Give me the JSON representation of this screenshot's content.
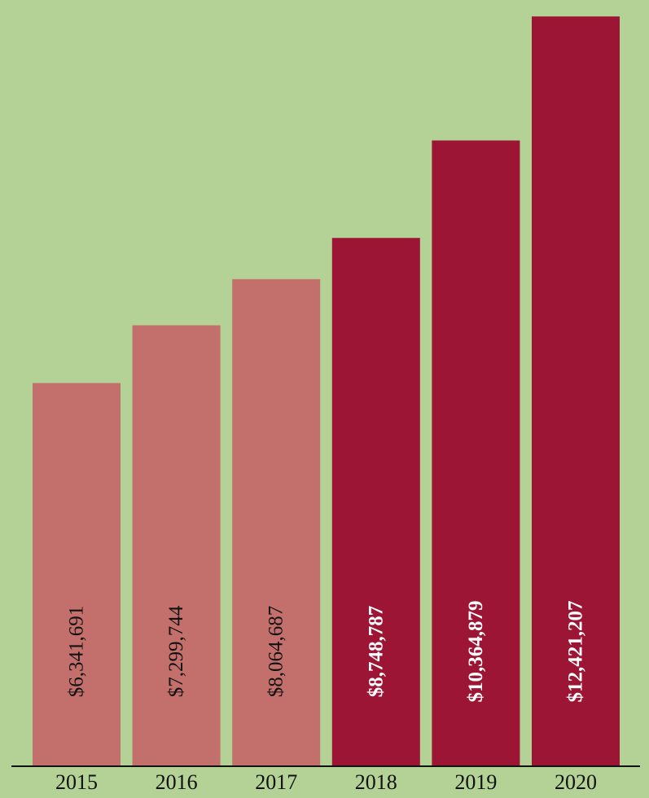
{
  "chart_data": {
    "type": "bar",
    "categories": [
      "2015",
      "2016",
      "2017",
      "2018",
      "2019",
      "2020"
    ],
    "values": [
      6341691,
      7299744,
      8064687,
      8748787,
      10364879,
      12421207
    ],
    "value_labels": [
      "$6,341,691",
      "$7,299,744",
      "$8,064,687",
      "$8,748,787",
      "$10,364,879",
      "$12,421,207"
    ],
    "ylim": [
      0,
      12600000
    ],
    "title": "",
    "xlabel": "",
    "ylabel": "",
    "grid": false,
    "legend": "none",
    "bar_colors": [
      "#c3706c",
      "#c3706c",
      "#c3706c",
      "#9c1535",
      "#9c1535",
      "#9c1535"
    ],
    "label_colors": [
      "#111111",
      "#111111",
      "#111111",
      "#ffffff",
      "#ffffff",
      "#ffffff"
    ],
    "label_weights": [
      "normal",
      "normal",
      "normal",
      "bold",
      "bold",
      "bold"
    ]
  },
  "colors": {
    "background": "#b4d295",
    "axis": "#111111"
  }
}
